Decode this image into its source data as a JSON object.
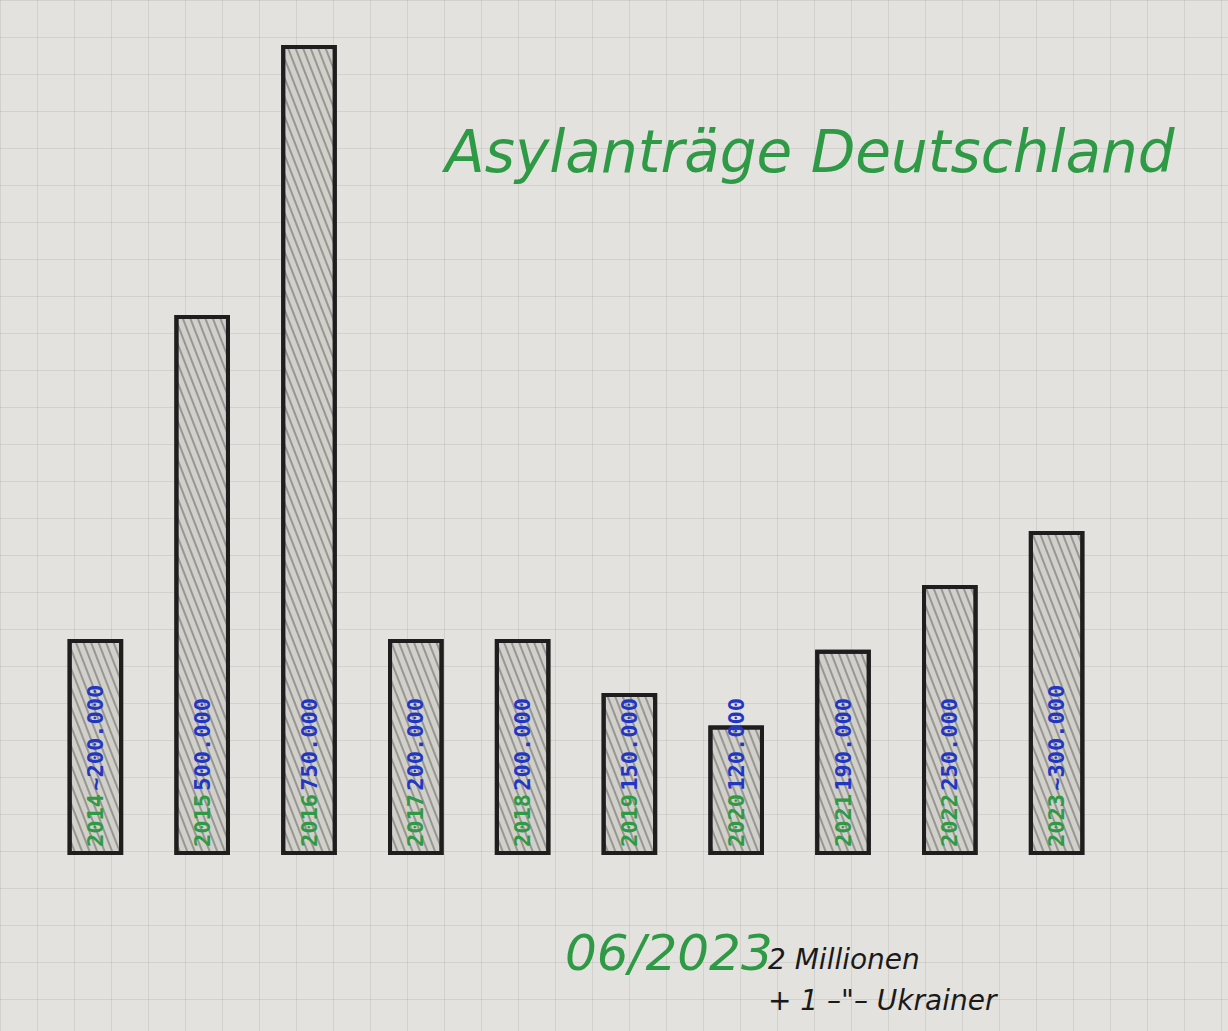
{
  "chart_data": {
    "type": "bar",
    "title": "Asylanträge Deutschland",
    "categories": [
      "2014",
      "2015",
      "2016",
      "2017",
      "2018",
      "2019",
      "2020",
      "2021",
      "2022",
      "2023"
    ],
    "values": [
      200000,
      500000,
      750000,
      200000,
      200000,
      150000,
      120000,
      190000,
      250000,
      300000
    ],
    "value_labels": [
      "~200.000",
      "500.000",
      "750.000",
      "200.000",
      "200.000",
      "150.000",
      "120.000",
      "190.000",
      "250.000",
      "~300.000"
    ],
    "color": "#1e1e1e",
    "ylim": [
      0,
      750000
    ],
    "grid": false,
    "data_labels": true,
    "tick_labels": false,
    "annotations": [
      "06/2023",
      "2 Millionen",
      "+ 1 –\"– Ukrainer"
    ]
  }
}
